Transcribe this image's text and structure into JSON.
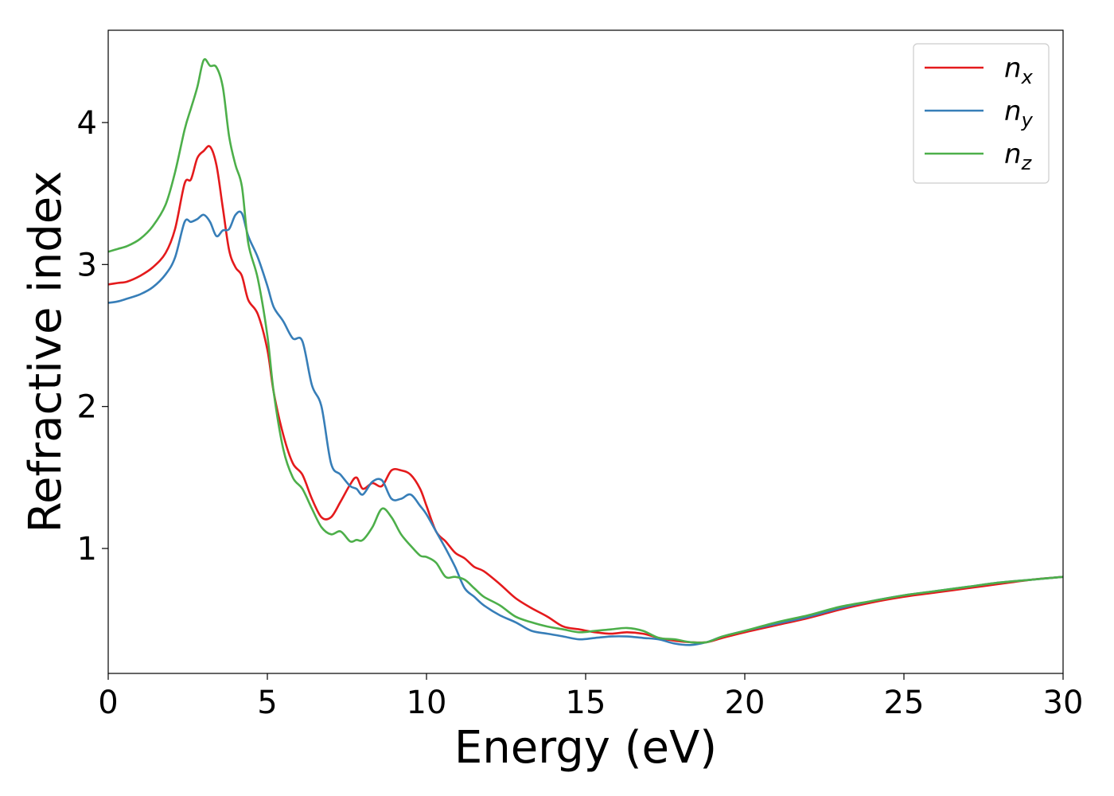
{
  "chart_data": {
    "type": "line",
    "title": "",
    "xlabel": "Energy (eV)",
    "ylabel": "Refractive index",
    "xlim": [
      0,
      30
    ],
    "ylim": [
      0.12,
      4.65
    ],
    "xticks": [
      0,
      5,
      10,
      15,
      20,
      25,
      30
    ],
    "yticks": [
      1,
      2,
      3,
      4
    ],
    "grid": false,
    "legend_position": "top-right",
    "series": [
      {
        "name": "n_x",
        "label_main": "n",
        "label_sub": "x",
        "color": "#e41a1c",
        "points": [
          [
            0,
            2.86
          ],
          [
            0.3,
            2.87
          ],
          [
            0.6,
            2.88
          ],
          [
            1.0,
            2.92
          ],
          [
            1.4,
            2.98
          ],
          [
            1.8,
            3.08
          ],
          [
            2.1,
            3.25
          ],
          [
            2.4,
            3.57
          ],
          [
            2.6,
            3.6
          ],
          [
            2.8,
            3.75
          ],
          [
            3.0,
            3.8
          ],
          [
            3.2,
            3.83
          ],
          [
            3.4,
            3.7
          ],
          [
            3.6,
            3.4
          ],
          [
            3.8,
            3.1
          ],
          [
            4.0,
            2.98
          ],
          [
            4.2,
            2.92
          ],
          [
            4.4,
            2.75
          ],
          [
            4.7,
            2.65
          ],
          [
            5.0,
            2.4
          ],
          [
            5.2,
            2.1
          ],
          [
            5.5,
            1.8
          ],
          [
            5.8,
            1.6
          ],
          [
            6.1,
            1.52
          ],
          [
            6.4,
            1.35
          ],
          [
            6.7,
            1.22
          ],
          [
            7.0,
            1.22
          ],
          [
            7.3,
            1.33
          ],
          [
            7.6,
            1.45
          ],
          [
            7.8,
            1.5
          ],
          [
            8.0,
            1.42
          ],
          [
            8.3,
            1.46
          ],
          [
            8.6,
            1.44
          ],
          [
            8.9,
            1.55
          ],
          [
            9.2,
            1.55
          ],
          [
            9.5,
            1.52
          ],
          [
            9.8,
            1.42
          ],
          [
            10.0,
            1.3
          ],
          [
            10.3,
            1.12
          ],
          [
            10.6,
            1.05
          ],
          [
            10.9,
            0.97
          ],
          [
            11.2,
            0.93
          ],
          [
            11.5,
            0.87
          ],
          [
            11.8,
            0.84
          ],
          [
            12.3,
            0.75
          ],
          [
            12.8,
            0.65
          ],
          [
            13.3,
            0.58
          ],
          [
            13.8,
            0.52
          ],
          [
            14.3,
            0.45
          ],
          [
            14.8,
            0.43
          ],
          [
            15.3,
            0.41
          ],
          [
            15.8,
            0.4
          ],
          [
            16.3,
            0.41
          ],
          [
            16.8,
            0.4
          ],
          [
            17.3,
            0.37
          ],
          [
            17.8,
            0.35
          ],
          [
            18.3,
            0.34
          ],
          [
            18.8,
            0.34
          ],
          [
            19.3,
            0.37
          ],
          [
            20.0,
            0.41
          ],
          [
            21.0,
            0.46
          ],
          [
            22.0,
            0.51
          ],
          [
            23.0,
            0.57
          ],
          [
            24.0,
            0.62
          ],
          [
            25.0,
            0.66
          ],
          [
            26.0,
            0.69
          ],
          [
            27.0,
            0.72
          ],
          [
            28.0,
            0.75
          ],
          [
            29.0,
            0.78
          ],
          [
            30.0,
            0.8
          ]
        ]
      },
      {
        "name": "n_y",
        "label_main": "n",
        "label_sub": "y",
        "color": "#377eb8",
        "points": [
          [
            0,
            2.73
          ],
          [
            0.3,
            2.74
          ],
          [
            0.6,
            2.76
          ],
          [
            1.0,
            2.79
          ],
          [
            1.4,
            2.84
          ],
          [
            1.8,
            2.93
          ],
          [
            2.1,
            3.05
          ],
          [
            2.4,
            3.3
          ],
          [
            2.6,
            3.3
          ],
          [
            2.8,
            3.32
          ],
          [
            3.0,
            3.35
          ],
          [
            3.2,
            3.3
          ],
          [
            3.4,
            3.2
          ],
          [
            3.6,
            3.24
          ],
          [
            3.8,
            3.25
          ],
          [
            4.0,
            3.35
          ],
          [
            4.2,
            3.36
          ],
          [
            4.4,
            3.2
          ],
          [
            4.7,
            3.05
          ],
          [
            5.0,
            2.85
          ],
          [
            5.2,
            2.7
          ],
          [
            5.5,
            2.6
          ],
          [
            5.8,
            2.48
          ],
          [
            6.1,
            2.46
          ],
          [
            6.4,
            2.15
          ],
          [
            6.7,
            2.0
          ],
          [
            7.0,
            1.6
          ],
          [
            7.3,
            1.52
          ],
          [
            7.6,
            1.44
          ],
          [
            7.8,
            1.42
          ],
          [
            8.0,
            1.38
          ],
          [
            8.3,
            1.47
          ],
          [
            8.6,
            1.48
          ],
          [
            8.9,
            1.35
          ],
          [
            9.2,
            1.35
          ],
          [
            9.5,
            1.38
          ],
          [
            9.8,
            1.3
          ],
          [
            10.0,
            1.24
          ],
          [
            10.3,
            1.12
          ],
          [
            10.6,
            1.0
          ],
          [
            10.9,
            0.87
          ],
          [
            11.2,
            0.72
          ],
          [
            11.5,
            0.66
          ],
          [
            11.8,
            0.6
          ],
          [
            12.3,
            0.53
          ],
          [
            12.8,
            0.48
          ],
          [
            13.3,
            0.42
          ],
          [
            13.8,
            0.4
          ],
          [
            14.3,
            0.38
          ],
          [
            14.8,
            0.36
          ],
          [
            15.3,
            0.37
          ],
          [
            15.8,
            0.38
          ],
          [
            16.3,
            0.38
          ],
          [
            16.8,
            0.37
          ],
          [
            17.3,
            0.36
          ],
          [
            17.8,
            0.33
          ],
          [
            18.3,
            0.32
          ],
          [
            18.8,
            0.34
          ],
          [
            19.3,
            0.38
          ],
          [
            20.0,
            0.42
          ],
          [
            21.0,
            0.47
          ],
          [
            22.0,
            0.52
          ],
          [
            23.0,
            0.58
          ],
          [
            24.0,
            0.63
          ],
          [
            25.0,
            0.67
          ],
          [
            26.0,
            0.7
          ],
          [
            27.0,
            0.73
          ],
          [
            28.0,
            0.76
          ],
          [
            29.0,
            0.78
          ],
          [
            30.0,
            0.8
          ]
        ]
      },
      {
        "name": "n_z",
        "label_main": "n",
        "label_sub": "z",
        "color": "#4daf4a",
        "points": [
          [
            0,
            3.09
          ],
          [
            0.3,
            3.11
          ],
          [
            0.6,
            3.13
          ],
          [
            1.0,
            3.18
          ],
          [
            1.4,
            3.27
          ],
          [
            1.8,
            3.42
          ],
          [
            2.1,
            3.65
          ],
          [
            2.4,
            3.95
          ],
          [
            2.6,
            4.1
          ],
          [
            2.8,
            4.25
          ],
          [
            3.0,
            4.44
          ],
          [
            3.2,
            4.4
          ],
          [
            3.4,
            4.39
          ],
          [
            3.6,
            4.25
          ],
          [
            3.8,
            3.9
          ],
          [
            4.0,
            3.7
          ],
          [
            4.2,
            3.55
          ],
          [
            4.4,
            3.15
          ],
          [
            4.7,
            2.9
          ],
          [
            5.0,
            2.5
          ],
          [
            5.2,
            2.1
          ],
          [
            5.5,
            1.7
          ],
          [
            5.8,
            1.5
          ],
          [
            6.1,
            1.42
          ],
          [
            6.4,
            1.28
          ],
          [
            6.7,
            1.15
          ],
          [
            7.0,
            1.1
          ],
          [
            7.3,
            1.12
          ],
          [
            7.6,
            1.05
          ],
          [
            7.8,
            1.06
          ],
          [
            8.0,
            1.06
          ],
          [
            8.3,
            1.15
          ],
          [
            8.6,
            1.28
          ],
          [
            8.9,
            1.22
          ],
          [
            9.2,
            1.1
          ],
          [
            9.5,
            1.02
          ],
          [
            9.8,
            0.95
          ],
          [
            10.0,
            0.94
          ],
          [
            10.3,
            0.9
          ],
          [
            10.6,
            0.8
          ],
          [
            10.9,
            0.8
          ],
          [
            11.2,
            0.78
          ],
          [
            11.5,
            0.72
          ],
          [
            11.8,
            0.66
          ],
          [
            12.3,
            0.6
          ],
          [
            12.8,
            0.52
          ],
          [
            13.3,
            0.48
          ],
          [
            13.8,
            0.45
          ],
          [
            14.3,
            0.43
          ],
          [
            14.8,
            0.41
          ],
          [
            15.3,
            0.42
          ],
          [
            15.8,
            0.43
          ],
          [
            16.3,
            0.44
          ],
          [
            16.8,
            0.42
          ],
          [
            17.3,
            0.37
          ],
          [
            17.8,
            0.36
          ],
          [
            18.3,
            0.34
          ],
          [
            18.8,
            0.34
          ],
          [
            19.3,
            0.38
          ],
          [
            20.0,
            0.42
          ],
          [
            21.0,
            0.48
          ],
          [
            22.0,
            0.53
          ],
          [
            23.0,
            0.59
          ],
          [
            24.0,
            0.63
          ],
          [
            25.0,
            0.67
          ],
          [
            26.0,
            0.7
          ],
          [
            27.0,
            0.73
          ],
          [
            28.0,
            0.76
          ],
          [
            29.0,
            0.78
          ],
          [
            30.0,
            0.8
          ]
        ]
      }
    ]
  }
}
